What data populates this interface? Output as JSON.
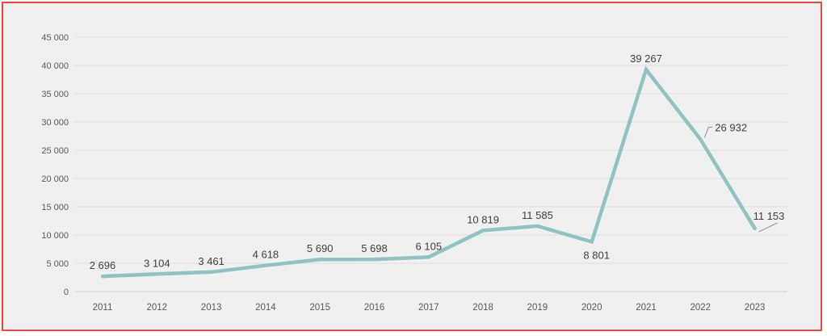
{
  "frame": {
    "border_color": "#EE4540",
    "background_color": "#F1F0F0",
    "outer_background": "#FFFFFF"
  },
  "chart_data": {
    "type": "line",
    "title": "",
    "xlabel": "",
    "ylabel": "",
    "legend": "none",
    "grid": true,
    "categories": [
      "2011",
      "2012",
      "2013",
      "2014",
      "2015",
      "2016",
      "2017",
      "2018",
      "2019",
      "2020",
      "2021",
      "2022",
      "2023"
    ],
    "series": [
      {
        "name": "",
        "values": [
          2696,
          3104,
          3461,
          4618,
          5690,
          5698,
          6105,
          10819,
          11585,
          8801,
          39267,
          26932,
          11153
        ]
      }
    ],
    "data_labels": [
      "2 696",
      "3 104",
      "3 461",
      "4 618",
      "5 690",
      "5 698",
      "6 105",
      "10 819",
      "11 585",
      "8 801",
      "39 267",
      "26 932",
      "11 153"
    ],
    "data_label_positions": [
      "above",
      "above",
      "above",
      "above",
      "above",
      "above",
      "above",
      "above",
      "above",
      "below",
      "above",
      "right-leader",
      "right-above-leader"
    ],
    "ylim": [
      0,
      45000
    ],
    "y_ticks": [
      {
        "value": 0,
        "label": "0"
      },
      {
        "value": 5000,
        "label": "5 000"
      },
      {
        "value": 10000,
        "label": "10 000"
      },
      {
        "value": 15000,
        "label": "15 000"
      },
      {
        "value": 20000,
        "label": "20 000"
      },
      {
        "value": 25000,
        "label": "25 000"
      },
      {
        "value": 30000,
        "label": "30 000"
      },
      {
        "value": 35000,
        "label": "35 000"
      },
      {
        "value": 40000,
        "label": "40 000"
      },
      {
        "value": 45000,
        "label": "45 000"
      }
    ],
    "colors": {
      "line": "#8FC3C3",
      "data_label": "#3F3F3F",
      "axis_label": "#595959",
      "gridline": "#E0DEDD",
      "axis_line": "#D3D1D0",
      "leader_line": "#8C8C8C"
    }
  }
}
